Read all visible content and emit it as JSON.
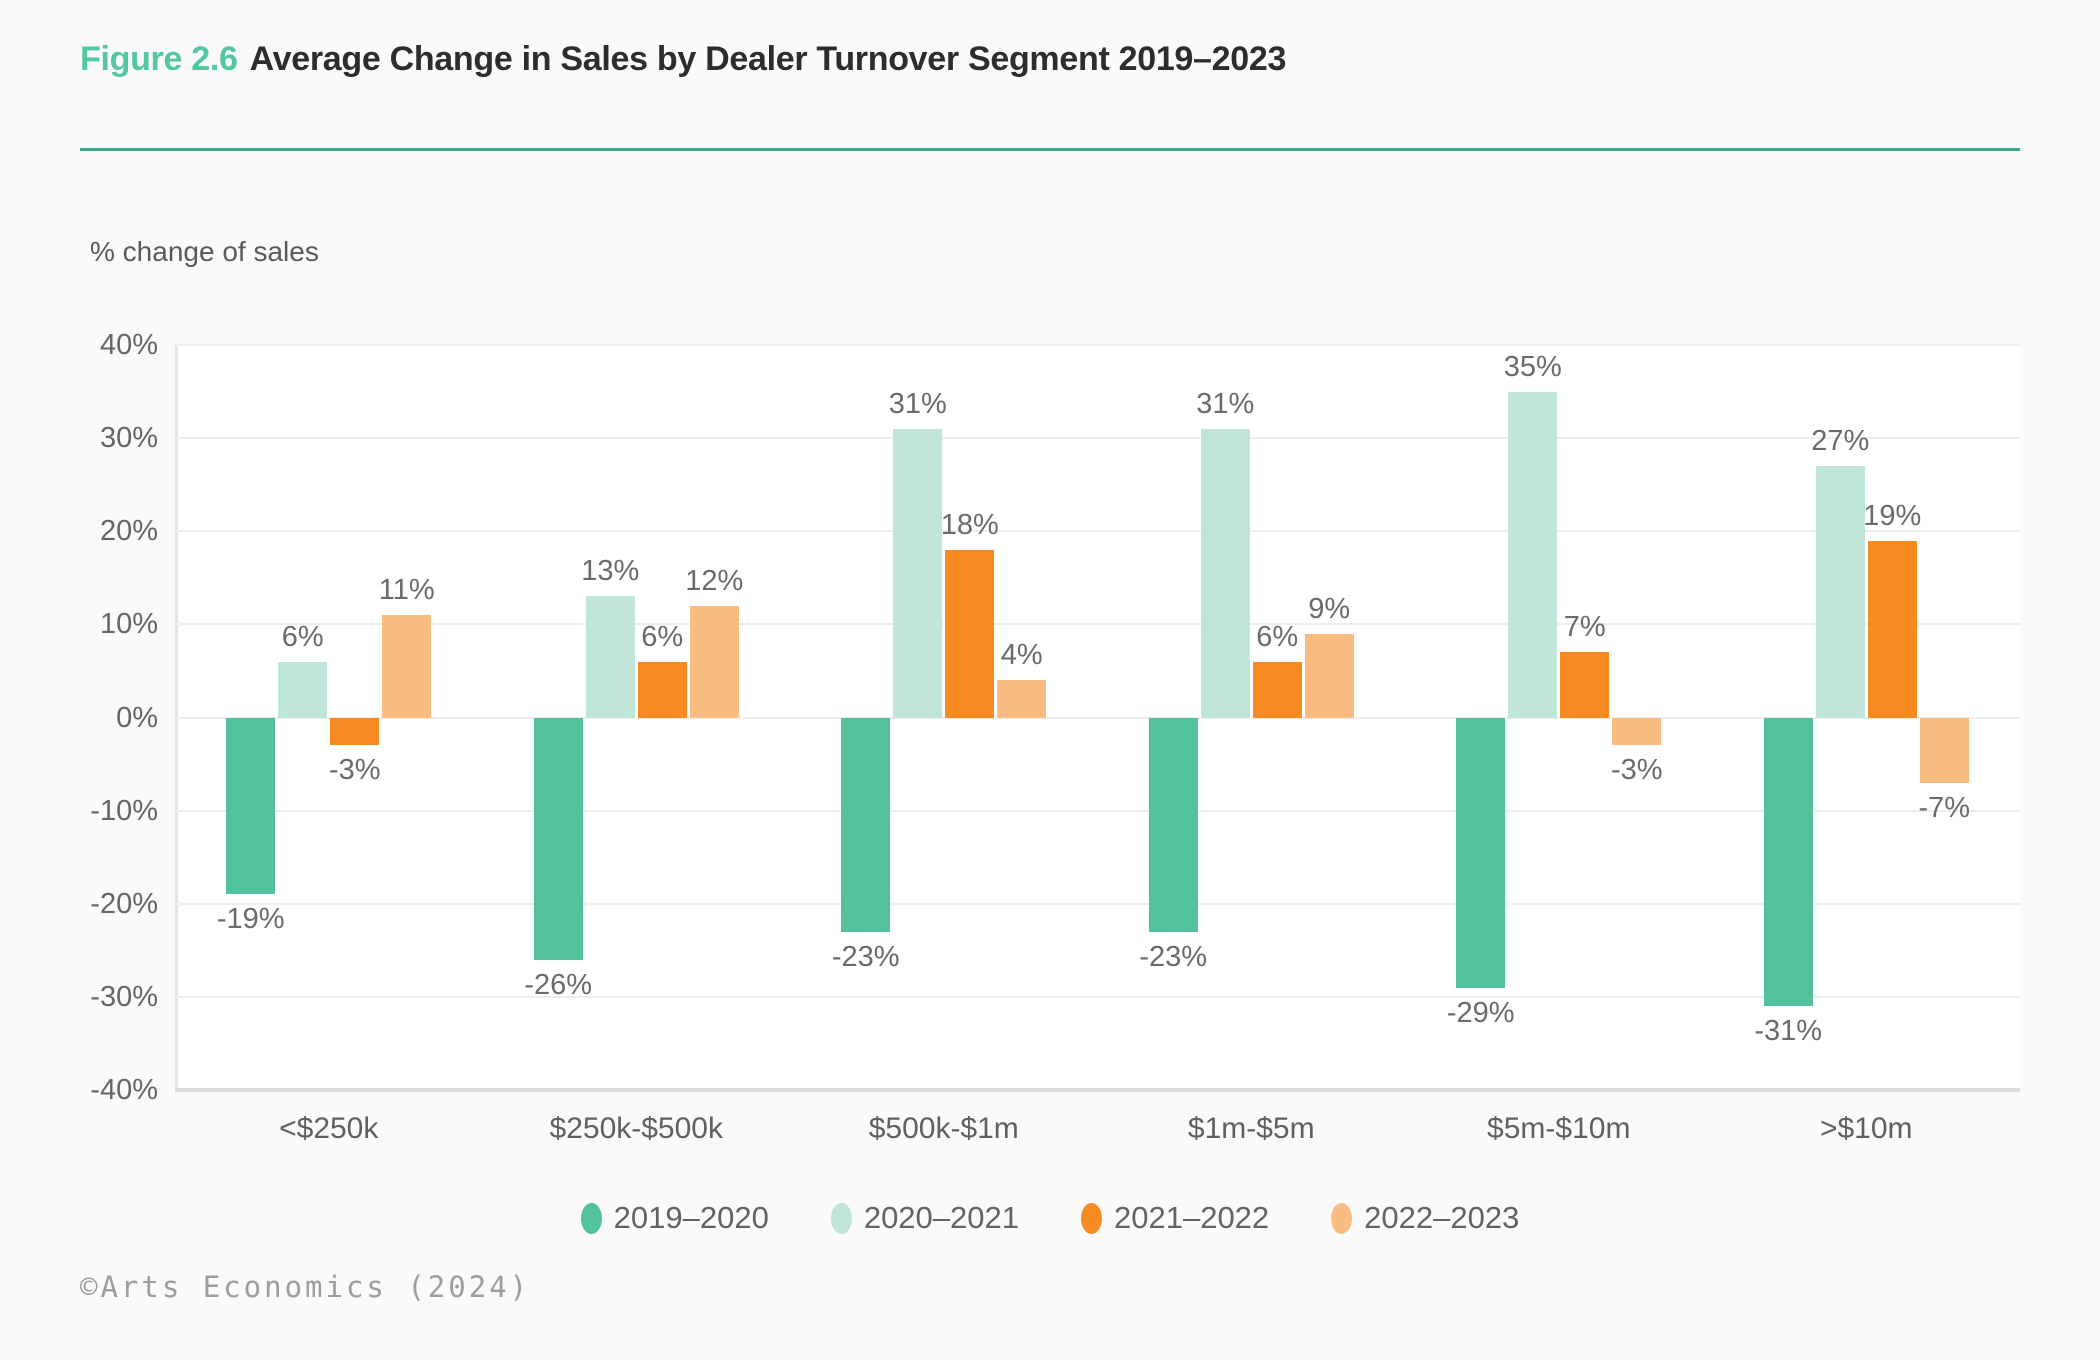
{
  "header": {
    "figure_label": "Figure 2.6",
    "title": "Average Change in Sales by Dealer Turnover Segment 2019–2023",
    "accent_color": "#53C6A2",
    "rule_color": "#35AA8B"
  },
  "chart_data": {
    "type": "bar",
    "title": "Figure 2.6 Average Change in Sales by Dealer Turnover Segment 2019–2023",
    "y_axis_title": "% change of sales",
    "xlabel": "",
    "ylabel": "% change of sales",
    "ylim": [
      -40,
      40
    ],
    "y_ticks": [
      40,
      30,
      20,
      10,
      0,
      -10,
      -20,
      -30,
      -40
    ],
    "grid": true,
    "legend_position": "bottom",
    "value_label_suffix": "%",
    "categories": [
      "<$250k",
      "$250k-$500k",
      "$500k-$1m",
      "$1m-$5m",
      "$5m-$10m",
      ">$10m"
    ],
    "series": [
      {
        "name": "2019–2020",
        "color": "#52C29B",
        "values": [
          -19,
          -26,
          -23,
          -23,
          -29,
          -31
        ]
      },
      {
        "name": "2020–2021",
        "color": "#BFE6D8",
        "values": [
          6,
          13,
          31,
          31,
          35,
          27
        ]
      },
      {
        "name": "2021–2022",
        "color": "#F68B21",
        "values": [
          -3,
          6,
          18,
          6,
          7,
          19
        ]
      },
      {
        "name": "2022–2023",
        "color": "#F9BD83",
        "values": [
          11,
          12,
          4,
          9,
          -3,
          -7
        ]
      }
    ]
  },
  "footer": {
    "credit": "©Arts Economics (2024)"
  }
}
